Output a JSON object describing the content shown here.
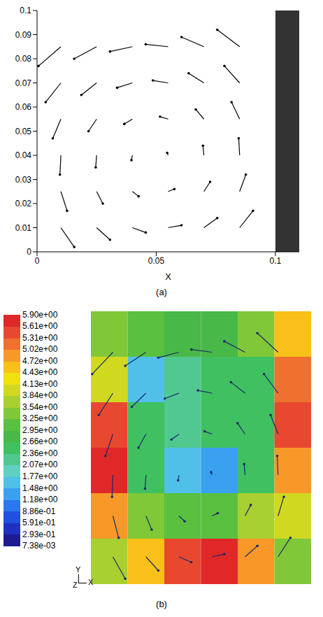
{
  "chart_data": [
    {
      "type": "vector_field",
      "caption": "(a)",
      "x_label": "X",
      "xlim": [
        0,
        0.11
      ],
      "xticks": [
        0,
        0.05,
        0.1
      ],
      "ylim": [
        0,
        0.1
      ],
      "yticks": [
        0,
        0.01,
        0.02,
        0.03,
        0.04,
        0.05,
        0.06,
        0.07,
        0.08,
        0.09,
        0.1
      ],
      "wall_x": [
        0.1,
        0.11
      ],
      "color": "#000000",
      "vectors": [
        [
          0.01,
          0.01,
          0.0056,
          -0.008
        ],
        [
          0.01,
          0.025,
          0.0026,
          -0.008
        ],
        [
          0.01,
          0.04,
          -0.0004,
          -0.008
        ],
        [
          0.01,
          0.055,
          -0.0034,
          -0.008
        ],
        [
          0.01,
          0.07,
          -0.0064,
          -0.008
        ],
        [
          0.01,
          0.085,
          -0.0094,
          -0.008
        ],
        [
          0.025,
          0.01,
          0.0056,
          -0.005
        ],
        [
          0.025,
          0.025,
          0.0026,
          -0.005
        ],
        [
          0.025,
          0.04,
          -0.0004,
          -0.005
        ],
        [
          0.025,
          0.055,
          -0.0034,
          -0.005
        ],
        [
          0.025,
          0.07,
          -0.0064,
          -0.005
        ],
        [
          0.025,
          0.085,
          -0.0094,
          -0.005
        ],
        [
          0.04,
          0.01,
          0.0056,
          -0.002
        ],
        [
          0.04,
          0.025,
          0.0026,
          -0.002
        ],
        [
          0.04,
          0.04,
          -0.0004,
          -0.002
        ],
        [
          0.04,
          0.055,
          -0.0034,
          -0.002
        ],
        [
          0.04,
          0.07,
          -0.0064,
          -0.002
        ],
        [
          0.04,
          0.085,
          -0.0094,
          -0.002
        ],
        [
          0.055,
          0.01,
          0.0056,
          0.001
        ],
        [
          0.055,
          0.025,
          0.0026,
          0.001
        ],
        [
          0.055,
          0.04,
          -0.0004,
          0.001
        ],
        [
          0.055,
          0.055,
          -0.0034,
          0.001
        ],
        [
          0.055,
          0.07,
          -0.0064,
          0.001
        ],
        [
          0.055,
          0.085,
          -0.0094,
          0.001
        ],
        [
          0.07,
          0.01,
          0.0056,
          0.004
        ],
        [
          0.07,
          0.025,
          0.0026,
          0.004
        ],
        [
          0.07,
          0.04,
          -0.0004,
          0.004
        ],
        [
          0.07,
          0.055,
          -0.0034,
          0.004
        ],
        [
          0.07,
          0.07,
          -0.0064,
          0.004
        ],
        [
          0.07,
          0.085,
          -0.0094,
          0.004
        ],
        [
          0.085,
          0.01,
          0.0056,
          0.007
        ],
        [
          0.085,
          0.025,
          0.0026,
          0.007
        ],
        [
          0.085,
          0.04,
          -0.0004,
          0.007
        ],
        [
          0.085,
          0.055,
          -0.0034,
          0.007
        ],
        [
          0.085,
          0.07,
          -0.0064,
          0.007
        ],
        [
          0.085,
          0.085,
          -0.0094,
          0.007
        ]
      ]
    },
    {
      "type": "contour_vector_field",
      "caption": "(b)",
      "tick_labels": false,
      "xlim": [
        0,
        0.1
      ],
      "ylim": [
        0,
        0.1
      ],
      "axis_triad": [
        "Y",
        "X",
        "Z"
      ],
      "color": "#1a2a6a",
      "cells": [
        [
          3.5,
          3.0,
          2.8,
          2.8,
          3.5,
          4.5
        ],
        [
          4.0,
          1.6,
          2.3,
          2.4,
          2.6,
          5.2
        ],
        [
          5.5,
          2.4,
          2.3,
          2.4,
          2.5,
          5.5
        ],
        [
          5.8,
          2.4,
          1.5,
          1.4,
          2.4,
          5.0
        ],
        [
          5.0,
          3.5,
          3.0,
          3.0,
          3.6,
          4.0
        ],
        [
          3.8,
          4.6,
          5.6,
          5.8,
          5.0,
          3.5
        ]
      ],
      "colorbar": {
        "range": [
          0.00738,
          5.9
        ],
        "ticks": [
          {
            "value": 5.9,
            "label": "5.90e+00"
          },
          {
            "value": 5.61,
            "label": "5.61e+00"
          },
          {
            "value": 5.31,
            "label": "5.31e+00"
          },
          {
            "value": 5.02,
            "label": "5.02e+00"
          },
          {
            "value": 4.72,
            "label": "4.72e+00"
          },
          {
            "value": 4.43,
            "label": "4.43e+00"
          },
          {
            "value": 4.13,
            "label": "4.13e+00"
          },
          {
            "value": 3.84,
            "label": "3.84e+00"
          },
          {
            "value": 3.54,
            "label": "3.54e+00"
          },
          {
            "value": 3.25,
            "label": "3.25e+00"
          },
          {
            "value": 2.95,
            "label": "2.95e+00"
          },
          {
            "value": 2.66,
            "label": "2.66e+00"
          },
          {
            "value": 2.36,
            "label": "2.36e+00"
          },
          {
            "value": 2.07,
            "label": "2.07e+00"
          },
          {
            "value": 1.77,
            "label": "1.77e+00"
          },
          {
            "value": 1.48,
            "label": "1.48e+00"
          },
          {
            "value": 1.18,
            "label": "1.18e+00"
          },
          {
            "value": 0.886,
            "label": "8.86e-01"
          },
          {
            "value": 0.591,
            "label": "5.91e-01"
          },
          {
            "value": 0.293,
            "label": "2.93e-01"
          },
          {
            "value": 0.00738,
            "label": "7.38e-03"
          }
        ],
        "colors": [
          "#1c1c90",
          "#2030c0",
          "#2050e0",
          "#2a78f0",
          "#3aa0f0",
          "#50c0e8",
          "#60d0c0",
          "#50c890",
          "#40c060",
          "#48b848",
          "#5ac040",
          "#80c838",
          "#a8d030",
          "#d0d820",
          "#f0e010",
          "#f8c018",
          "#f89828",
          "#f07030",
          "#e84830",
          "#e02828"
        ]
      },
      "vectors": [
        [
          0.01,
          0.01,
          0.0056,
          -0.008
        ],
        [
          0.01,
          0.025,
          0.0026,
          -0.008
        ],
        [
          0.01,
          0.04,
          -0.0004,
          -0.008
        ],
        [
          0.01,
          0.055,
          -0.0034,
          -0.008
        ],
        [
          0.01,
          0.07,
          -0.0064,
          -0.008
        ],
        [
          0.01,
          0.085,
          -0.0094,
          -0.008
        ],
        [
          0.025,
          0.01,
          0.0056,
          -0.005
        ],
        [
          0.025,
          0.025,
          0.0026,
          -0.005
        ],
        [
          0.025,
          0.04,
          -0.0004,
          -0.005
        ],
        [
          0.025,
          0.055,
          -0.0034,
          -0.005
        ],
        [
          0.025,
          0.07,
          -0.0064,
          -0.005
        ],
        [
          0.025,
          0.085,
          -0.0094,
          -0.005
        ],
        [
          0.04,
          0.01,
          0.0056,
          -0.002
        ],
        [
          0.04,
          0.025,
          0.0026,
          -0.002
        ],
        [
          0.04,
          0.04,
          -0.0004,
          -0.002
        ],
        [
          0.04,
          0.055,
          -0.0034,
          -0.002
        ],
        [
          0.04,
          0.07,
          -0.0064,
          -0.002
        ],
        [
          0.04,
          0.085,
          -0.0094,
          -0.002
        ],
        [
          0.055,
          0.01,
          0.0056,
          0.001
        ],
        [
          0.055,
          0.025,
          0.0026,
          0.001
        ],
        [
          0.055,
          0.04,
          -0.0004,
          0.001
        ],
        [
          0.055,
          0.055,
          -0.0034,
          0.001
        ],
        [
          0.055,
          0.07,
          -0.0064,
          0.001
        ],
        [
          0.055,
          0.085,
          -0.0094,
          0.001
        ],
        [
          0.07,
          0.01,
          0.0056,
          0.004
        ],
        [
          0.07,
          0.025,
          0.0026,
          0.004
        ],
        [
          0.07,
          0.04,
          -0.0004,
          0.004
        ],
        [
          0.07,
          0.055,
          -0.0034,
          0.004
        ],
        [
          0.07,
          0.07,
          -0.0064,
          0.004
        ],
        [
          0.07,
          0.085,
          -0.0094,
          0.004
        ],
        [
          0.085,
          0.01,
          0.0056,
          0.007
        ],
        [
          0.085,
          0.025,
          0.0026,
          0.007
        ],
        [
          0.085,
          0.04,
          -0.0004,
          0.007
        ],
        [
          0.085,
          0.055,
          -0.0034,
          0.007
        ],
        [
          0.085,
          0.07,
          -0.0064,
          0.007
        ],
        [
          0.085,
          0.085,
          -0.0094,
          0.007
        ]
      ]
    }
  ]
}
